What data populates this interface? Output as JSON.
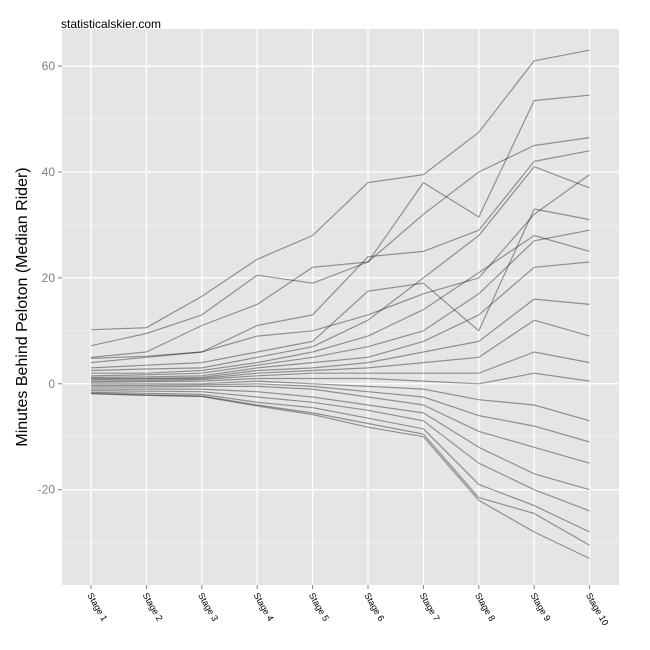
{
  "watermark": "statisticalskier.com",
  "chart_data": {
    "type": "line",
    "title": "",
    "xlabel": "",
    "ylabel": "Minutes Behind Peloton (Median Rider)",
    "categories": [
      "Stage 1",
      "Stage 2",
      "Stage 3",
      "Stage 4",
      "Stage 5",
      "Stage 6",
      "Stage 7",
      "Stage 8",
      "Stage 9",
      "Stage 10"
    ],
    "ylim": [
      -38,
      67
    ],
    "yticks": [
      -20,
      0,
      20,
      40,
      60
    ],
    "grid": true,
    "legend": "none",
    "colors": {
      "panel": "#e5e5e5",
      "grid": "#ffffff",
      "line": "#000000",
      "tick_text": "#7f7f7f"
    },
    "series": [
      {
        "values": [
          10.2,
          10.6,
          16.5,
          23.5,
          28,
          38,
          39.5,
          47.5,
          61,
          63
        ]
      },
      {
        "values": [
          7.2,
          9.5,
          13,
          20.5,
          19,
          23,
          38,
          31.5,
          53.5,
          54.5
        ]
      },
      {
        "values": [
          5,
          6,
          11,
          15,
          22,
          23,
          32,
          40,
          45,
          46.5
        ]
      },
      {
        "values": [
          4,
          5,
          6,
          11,
          13,
          24,
          25,
          29,
          42,
          44
        ]
      },
      {
        "values": [
          4.8,
          5.2,
          6,
          9,
          10,
          13,
          17,
          20,
          32,
          39.5
        ]
      },
      {
        "values": [
          3,
          3.5,
          4,
          6,
          8,
          17.5,
          19,
          10,
          33,
          31
        ]
      },
      {
        "values": [
          2.5,
          2.8,
          3,
          5,
          7,
          12,
          20,
          28,
          41,
          37
        ]
      },
      {
        "values": [
          2,
          2,
          2.5,
          4,
          6,
          9,
          14,
          21,
          28,
          25
        ]
      },
      {
        "values": [
          1.5,
          1.7,
          2,
          3.5,
          5,
          7,
          10,
          17,
          27,
          29
        ]
      },
      {
        "values": [
          1.2,
          1.3,
          1.5,
          3,
          4,
          5,
          8,
          13,
          22,
          23
        ]
      },
      {
        "values": [
          1,
          1,
          1.2,
          2.5,
          3,
          4,
          6,
          8,
          16,
          15
        ]
      },
      {
        "values": [
          0.8,
          0.9,
          1,
          2,
          2.5,
          3,
          4,
          5,
          12,
          9
        ]
      },
      {
        "values": [
          0.5,
          0.6,
          0.8,
          1.5,
          2,
          2,
          2,
          2,
          6,
          4
        ]
      },
      {
        "values": [
          0.3,
          0.4,
          0.5,
          1,
          1,
          1,
          0.5,
          0,
          2,
          0.5
        ]
      },
      {
        "values": [
          0,
          0,
          0,
          0.5,
          0,
          -0.5,
          -1,
          -3,
          -4,
          -7
        ]
      },
      {
        "values": [
          -0.3,
          -0.3,
          -0.2,
          0,
          -0.5,
          -1.5,
          -2.5,
          -6,
          -8,
          -11
        ]
      },
      {
        "values": [
          -0.6,
          -0.6,
          -0.5,
          -0.5,
          -1,
          -2.5,
          -4,
          -9,
          -12,
          -15
        ]
      },
      {
        "values": [
          -1,
          -1,
          -1,
          -1.5,
          -2.5,
          -4,
          -5.5,
          -12,
          -17,
          -20
        ]
      },
      {
        "values": [
          -1.3,
          -1.4,
          -1.5,
          -2.5,
          -3.5,
          -5,
          -7,
          -15,
          -20,
          -24
        ]
      },
      {
        "values": [
          -1.6,
          -1.8,
          -2,
          -3.5,
          -4.5,
          -6.5,
          -8.5,
          -19,
          -23,
          -28
        ]
      },
      {
        "values": [
          -1.8,
          -2.1,
          -2.3,
          -4,
          -5.5,
          -7.5,
          -9.5,
          -21.5,
          -24.5,
          -30.5
        ]
      },
      {
        "values": [
          -1.9,
          -2.2,
          -2.4,
          -4.2,
          -5.8,
          -8.2,
          -10,
          -22,
          -28,
          -33
        ]
      }
    ]
  }
}
